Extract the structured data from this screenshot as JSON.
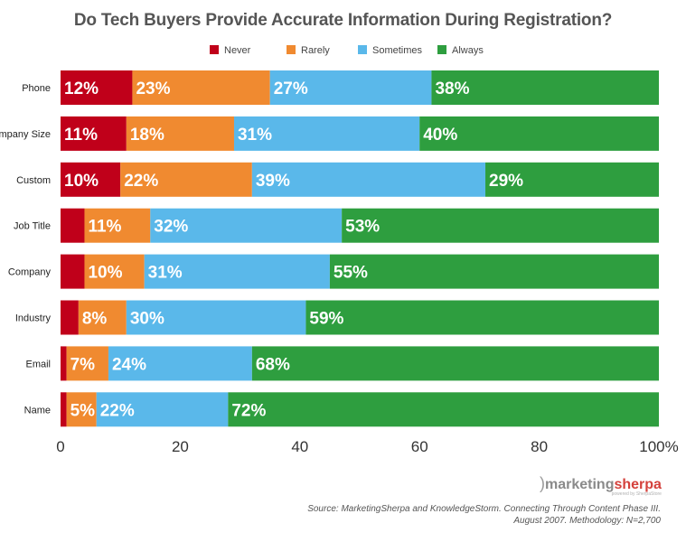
{
  "chart_data": {
    "type": "bar",
    "orientation": "horizontal",
    "stacked": true,
    "title": "Do Tech Buyers Provide Accurate Information During Registration?",
    "categories": [
      "Phone",
      "Company Size",
      "Custom",
      "Job Title",
      "Company",
      "Industry",
      "Email",
      "Name"
    ],
    "series": [
      {
        "name": "Never",
        "color": "#c0001a",
        "values": [
          12,
          11,
          10,
          4,
          4,
          3,
          1,
          1
        ],
        "labels": [
          "12%",
          "11%",
          "10%",
          "",
          "",
          "",
          "",
          ""
        ]
      },
      {
        "name": "Rarely",
        "color": "#f08a30",
        "values": [
          23,
          18,
          22,
          11,
          10,
          8,
          7,
          5
        ],
        "labels": [
          "23%",
          "18%",
          "22%",
          "11%",
          "10%",
          "8%",
          "7%",
          "5%"
        ]
      },
      {
        "name": "Sometimes",
        "color": "#5ab8ea",
        "values": [
          27,
          31,
          39,
          32,
          31,
          30,
          24,
          22
        ],
        "labels": [
          "27%",
          "31%",
          "39%",
          "32%",
          "31%",
          "30%",
          "24%",
          "22%"
        ]
      },
      {
        "name": "Always",
        "color": "#2e9e3f",
        "values": [
          38,
          40,
          29,
          53,
          55,
          59,
          68,
          72
        ],
        "labels": [
          "38%",
          "40%",
          "29%",
          "53%",
          "55%",
          "59%",
          "68%",
          "72%"
        ]
      }
    ],
    "xlim": [
      0,
      100
    ],
    "xticks": [
      "0",
      "20",
      "40",
      "60",
      "80",
      "100%"
    ],
    "legend_position": "top"
  },
  "logo": {
    "brand_left": "marketing",
    "brand_right": "sherpa",
    "tagline": "powered by SherpaStore"
  },
  "source": {
    "line1": "Source: MarketingSherpa and KnowledgeStorm. Connecting Through Content Phase III.",
    "line2": "August 2007. Methodology: N=2,700"
  }
}
